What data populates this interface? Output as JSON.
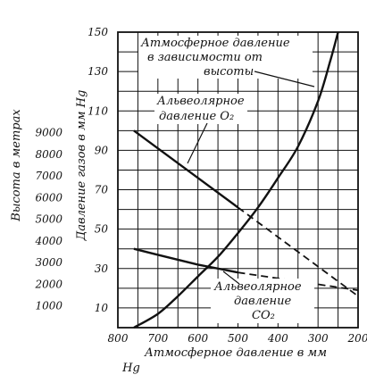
{
  "chart_data": {
    "type": "line",
    "title": "",
    "xlabel": "Атмосферное давление в мм Hg",
    "ylabel_left_outer": "Высота в метрах",
    "ylabel_left_inner": "Давление газов в мм Hg",
    "x_reversed": true,
    "xlim": [
      800,
      200
    ],
    "ylim": [
      0,
      150
    ],
    "x_ticks": [
      800,
      700,
      600,
      500,
      400,
      300,
      200
    ],
    "y_ticks": [
      10,
      30,
      50,
      70,
      90,
      110,
      130,
      150
    ],
    "altitude_ticks": [
      {
        "label": "1000",
        "pressure_mmHg": 11
      },
      {
        "label": "2000",
        "pressure_mmHg": 22
      },
      {
        "label": "3000",
        "pressure_mmHg": 33
      },
      {
        "label": "4000",
        "pressure_mmHg": 44
      },
      {
        "label": "5000",
        "pressure_mmHg": 55
      },
      {
        "label": "6000",
        "pressure_mmHg": 66
      },
      {
        "label": "7000",
        "pressure_mmHg": 77
      },
      {
        "label": "8000",
        "pressure_mmHg": 88
      },
      {
        "label": "9000",
        "pressure_mmHg": 99
      }
    ],
    "grid": true,
    "series": [
      {
        "name": "Атмосферное давление в зависимости от высоты",
        "style": "solid",
        "points": [
          [
            760,
            0
          ],
          [
            700,
            7
          ],
          [
            650,
            16
          ],
          [
            600,
            26
          ],
          [
            550,
            36
          ],
          [
            500,
            48
          ],
          [
            450,
            61
          ],
          [
            400,
            76
          ],
          [
            350,
            92
          ],
          [
            300,
            115
          ],
          [
            270,
            135
          ],
          [
            250,
            150
          ]
        ]
      },
      {
        "name": "Альвеолярное давление O2",
        "style": "solid",
        "points": [
          [
            760,
            100
          ],
          [
            700,
            91
          ],
          [
            600,
            76
          ],
          [
            500,
            61
          ]
        ],
        "extrapolated": [
          [
            500,
            61
          ],
          [
            400,
            46
          ],
          [
            300,
            31
          ],
          [
            200,
            16
          ]
        ]
      },
      {
        "name": "Альвеолярное давление CO2",
        "style": "solid",
        "points": [
          [
            760,
            40
          ],
          [
            700,
            37
          ],
          [
            600,
            32
          ],
          [
            500,
            28
          ]
        ],
        "extrapolated": [
          [
            500,
            28
          ],
          [
            400,
            25
          ],
          [
            300,
            22
          ],
          [
            200,
            19
          ]
        ]
      }
    ],
    "annotations": {
      "atm": [
        "Атмосферное давление",
        "в зависимости от",
        "высоты"
      ],
      "o2": [
        "Альвеолярное",
        "давление O₂"
      ],
      "co2": [
        "Альвеолярное",
        "давление",
        "CO₂"
      ]
    }
  }
}
